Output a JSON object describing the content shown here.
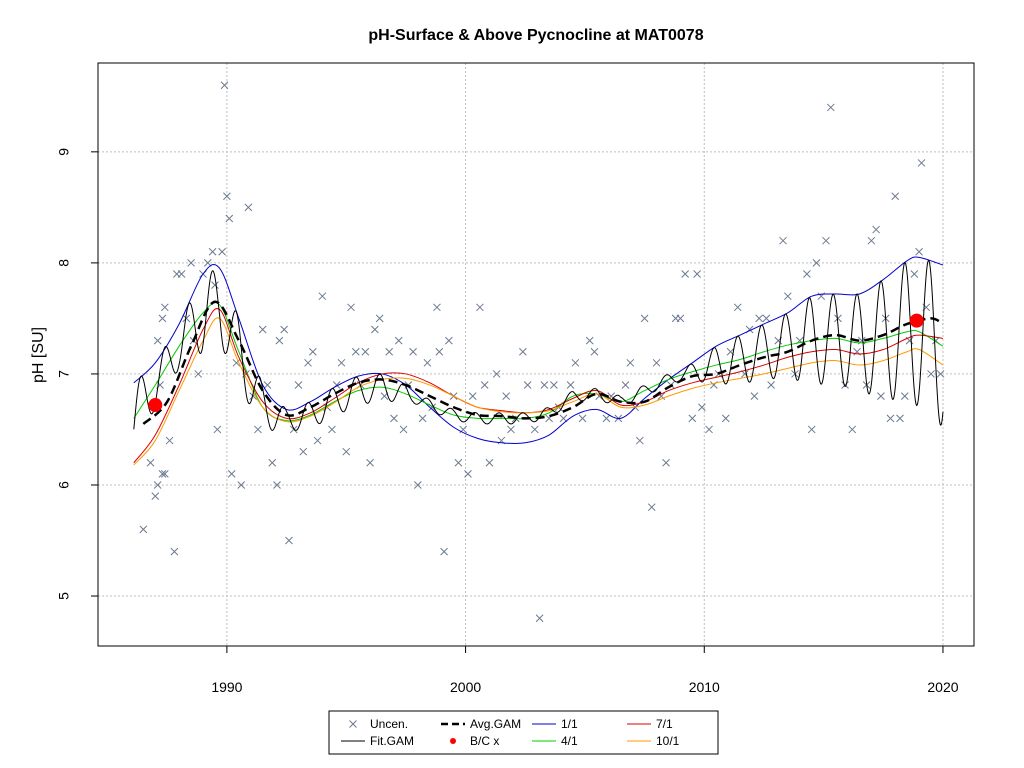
{
  "chart_data": {
    "type": "scatter",
    "title": "pH-Surface & Above Pycnocline at MAT0078",
    "xlabel": "",
    "ylabel": "pH [SU]",
    "xlim": [
      1984.6,
      2021.3
    ],
    "ylim": [
      4.55,
      9.8
    ],
    "xticks": [
      1990,
      2000,
      2010,
      2020
    ],
    "yticks": [
      5,
      6,
      7,
      8,
      9
    ],
    "grid": true,
    "colors": {
      "points": "#6b7a8f",
      "fit_gam": "#000000",
      "avg_gam": "#000000",
      "bc": "#ff0000",
      "s1_1": "#0000cc",
      "s4_1": "#00cc00",
      "s7_1": "#dd0000",
      "s10_1": "#ff9900",
      "grid": "#bfbfbf"
    },
    "legend": {
      "position": "bottom-center",
      "entries": [
        {
          "label": "Uncen.",
          "symbol": "x-mark",
          "color": "#6b7a8f"
        },
        {
          "label": "Avg.GAM",
          "symbol": "dashed-line",
          "color": "#000000"
        },
        {
          "label": "1/1",
          "symbol": "line",
          "color": "#0000cc"
        },
        {
          "label": "7/1",
          "symbol": "line",
          "color": "#dd0000"
        },
        {
          "label": "Fit.GAM",
          "symbol": "line",
          "color": "#000000"
        },
        {
          "label": "B/C x",
          "symbol": "dot",
          "color": "#ff0000"
        },
        {
          "label": "4/1",
          "symbol": "line",
          "color": "#00cc00"
        },
        {
          "label": "10/1",
          "symbol": "line",
          "color": "#ff9900"
        }
      ]
    },
    "baseline_change_points": [
      {
        "x": 1987.0,
        "y": 6.72
      },
      {
        "x": 2018.9,
        "y": 7.48
      }
    ],
    "avg_gam": {
      "x": [
        1986.5,
        1987.5,
        1988.5,
        1989.5,
        1990.5,
        1991.5,
        1992.5,
        1993.5,
        1994.5,
        1995.5,
        1996.5,
        1997.5,
        1998.5,
        1999.5,
        2000.5,
        2001.5,
        2002.5,
        2003.5,
        2004.5,
        2005.5,
        2006.5,
        2007.5,
        2008.5,
        2009.5,
        2010.5,
        2011.5,
        2012.5,
        2013.5,
        2014.5,
        2015.5,
        2016.5,
        2017.5,
        2018.5,
        2019.5,
        2020.0
      ],
      "y": [
        6.55,
        6.75,
        7.25,
        7.65,
        7.3,
        6.85,
        6.63,
        6.7,
        6.82,
        6.92,
        6.95,
        6.9,
        6.8,
        6.7,
        6.63,
        6.62,
        6.6,
        6.62,
        6.7,
        6.82,
        6.75,
        6.75,
        6.88,
        6.98,
        7.0,
        7.08,
        7.15,
        7.2,
        7.3,
        7.35,
        7.3,
        7.35,
        7.45,
        7.5,
        7.45
      ]
    },
    "series": [
      {
        "name": "1/1",
        "x": [
          1986.1,
          1987.0,
          1988.0,
          1989.0,
          1989.7,
          1990.5,
          1991.5,
          1992.5,
          1993.5,
          1994.5,
          1995.5,
          1996.5,
          1997.5,
          1998.5,
          1999.5,
          2000.5,
          2001.5,
          2002.5,
          2003.5,
          2004.5,
          2005.5,
          2006.5,
          2007.5,
          2008.5,
          2009.5,
          2010.5,
          2011.5,
          2012.5,
          2013.5,
          2014.5,
          2015.5,
          2016.5,
          2017.5,
          2018.5,
          2019.0,
          2020.0
        ],
        "y": [
          6.92,
          7.1,
          7.45,
          7.9,
          7.95,
          7.5,
          6.9,
          6.68,
          6.75,
          6.88,
          6.98,
          7.0,
          6.9,
          6.7,
          6.52,
          6.42,
          6.38,
          6.38,
          6.45,
          6.62,
          6.68,
          6.6,
          6.78,
          6.95,
          7.1,
          7.25,
          7.35,
          7.45,
          7.55,
          7.7,
          7.72,
          7.72,
          7.85,
          8.02,
          8.05,
          7.98
        ]
      },
      {
        "name": "4/1",
        "x": [
          1986.1,
          1987.0,
          1988.0,
          1989.0,
          1989.7,
          1990.5,
          1991.5,
          1992.5,
          1993.5,
          1994.5,
          1995.5,
          1996.5,
          1997.5,
          1998.5,
          1999.5,
          2000.5,
          2001.5,
          2002.5,
          2003.5,
          2004.5,
          2005.5,
          2006.5,
          2007.5,
          2008.5,
          2009.5,
          2010.5,
          2011.5,
          2012.5,
          2013.5,
          2014.5,
          2015.5,
          2016.5,
          2017.5,
          2018.5,
          2019.0,
          2020.0
        ],
        "y": [
          6.6,
          6.9,
          7.25,
          7.55,
          7.62,
          7.2,
          6.7,
          6.58,
          6.63,
          6.75,
          6.85,
          6.88,
          6.82,
          6.72,
          6.63,
          6.6,
          6.6,
          6.6,
          6.65,
          6.8,
          6.82,
          6.75,
          6.85,
          6.95,
          7.02,
          7.08,
          7.13,
          7.2,
          7.26,
          7.3,
          7.32,
          7.28,
          7.32,
          7.38,
          7.38,
          7.25
        ]
      },
      {
        "name": "7/1",
        "x": [
          1986.1,
          1987.0,
          1988.0,
          1989.0,
          1989.7,
          1990.5,
          1991.5,
          1992.5,
          1993.5,
          1994.5,
          1995.5,
          1996.5,
          1997.5,
          1998.5,
          1999.5,
          2000.5,
          2001.5,
          2002.5,
          2003.5,
          2004.5,
          2005.5,
          2006.5,
          2007.5,
          2008.5,
          2009.5,
          2010.5,
          2011.5,
          2012.5,
          2013.5,
          2014.5,
          2015.5,
          2016.5,
          2017.5,
          2018.5,
          2019.0,
          2020.0
        ],
        "y": [
          6.2,
          6.45,
          6.9,
          7.4,
          7.58,
          7.15,
          6.75,
          6.6,
          6.65,
          6.78,
          6.92,
          7.0,
          7.0,
          6.92,
          6.8,
          6.7,
          6.67,
          6.65,
          6.68,
          6.78,
          6.85,
          6.72,
          6.75,
          6.85,
          6.92,
          6.97,
          7.02,
          7.08,
          7.15,
          7.2,
          7.22,
          7.18,
          7.22,
          7.32,
          7.35,
          7.32
        ]
      },
      {
        "name": "10/1",
        "x": [
          1986.1,
          1987.0,
          1988.0,
          1989.0,
          1989.7,
          1990.5,
          1991.5,
          1992.5,
          1993.5,
          1994.5,
          1995.5,
          1996.5,
          1997.5,
          1998.5,
          1999.5,
          2000.5,
          2001.5,
          2002.5,
          2003.5,
          2004.5,
          2005.5,
          2006.5,
          2007.5,
          2008.5,
          2009.5,
          2010.5,
          2011.5,
          2012.5,
          2013.5,
          2014.5,
          2015.5,
          2016.5,
          2017.5,
          2018.5,
          2019.0,
          2020.0
        ],
        "y": [
          6.18,
          6.4,
          6.85,
          7.3,
          7.5,
          7.1,
          6.7,
          6.57,
          6.62,
          6.74,
          6.88,
          6.95,
          6.96,
          6.9,
          6.8,
          6.7,
          6.66,
          6.65,
          6.67,
          6.75,
          6.82,
          6.7,
          6.72,
          6.8,
          6.87,
          6.92,
          6.96,
          7.0,
          7.05,
          7.1,
          7.12,
          7.08,
          7.12,
          7.2,
          7.22,
          7.08
        ]
      }
    ],
    "points": [
      [
        1986.5,
        5.6
      ],
      [
        1986.8,
        6.2
      ],
      [
        1987.0,
        5.9
      ],
      [
        1987.1,
        6.0
      ],
      [
        1987.3,
        6.1
      ],
      [
        1987.4,
        6.1
      ],
      [
        1987.2,
        6.9
      ],
      [
        1987.1,
        7.3
      ],
      [
        1987.3,
        7.5
      ],
      [
        1987.4,
        7.6
      ],
      [
        1987.6,
        6.4
      ],
      [
        1987.8,
        5.4
      ],
      [
        1987.9,
        7.9
      ],
      [
        1988.1,
        7.9
      ],
      [
        1988.3,
        7.5
      ],
      [
        1988.5,
        8.0
      ],
      [
        1988.6,
        7.3
      ],
      [
        1988.8,
        7.0
      ],
      [
        1989.0,
        7.9
      ],
      [
        1989.2,
        8.0
      ],
      [
        1989.4,
        8.1
      ],
      [
        1989.5,
        7.8
      ],
      [
        1989.6,
        6.5
      ],
      [
        1989.8,
        8.1
      ],
      [
        1989.9,
        9.6
      ],
      [
        1990.0,
        8.6
      ],
      [
        1990.1,
        8.4
      ],
      [
        1990.2,
        6.1
      ],
      [
        1990.4,
        7.1
      ],
      [
        1990.6,
        6.0
      ],
      [
        1990.8,
        7.0
      ],
      [
        1990.9,
        8.5
      ],
      [
        1991.1,
        6.8
      ],
      [
        1991.3,
        6.5
      ],
      [
        1991.5,
        7.4
      ],
      [
        1991.7,
        6.9
      ],
      [
        1991.9,
        6.2
      ],
      [
        1992.1,
        6.0
      ],
      [
        1992.2,
        7.3
      ],
      [
        1992.4,
        7.4
      ],
      [
        1992.6,
        5.5
      ],
      [
        1992.8,
        6.5
      ],
      [
        1993.0,
        6.9
      ],
      [
        1993.2,
        6.3
      ],
      [
        1993.4,
        7.1
      ],
      [
        1993.6,
        7.2
      ],
      [
        1993.8,
        6.4
      ],
      [
        1994.0,
        7.7
      ],
      [
        1994.2,
        6.7
      ],
      [
        1994.4,
        6.5
      ],
      [
        1994.6,
        6.9
      ],
      [
        1994.8,
        7.1
      ],
      [
        1995.0,
        6.3
      ],
      [
        1995.2,
        7.6
      ],
      [
        1995.4,
        7.2
      ],
      [
        1995.6,
        6.9
      ],
      [
        1995.8,
        7.2
      ],
      [
        1996.0,
        6.2
      ],
      [
        1996.2,
        7.4
      ],
      [
        1996.4,
        7.5
      ],
      [
        1996.6,
        6.8
      ],
      [
        1996.8,
        7.2
      ],
      [
        1997.0,
        6.6
      ],
      [
        1997.2,
        7.3
      ],
      [
        1997.4,
        6.5
      ],
      [
        1997.6,
        6.9
      ],
      [
        1997.8,
        7.2
      ],
      [
        1998.0,
        6.0
      ],
      [
        1998.2,
        6.6
      ],
      [
        1998.4,
        7.1
      ],
      [
        1998.6,
        6.7
      ],
      [
        1998.8,
        7.6
      ],
      [
        1998.9,
        7.2
      ],
      [
        1999.1,
        5.4
      ],
      [
        1999.3,
        7.3
      ],
      [
        1999.5,
        6.8
      ],
      [
        1999.7,
        6.2
      ],
      [
        1999.9,
        6.5
      ],
      [
        2000.1,
        6.1
      ],
      [
        2000.3,
        6.8
      ],
      [
        2000.6,
        7.6
      ],
      [
        2000.8,
        6.9
      ],
      [
        2001.0,
        6.2
      ],
      [
        2001.3,
        7.0
      ],
      [
        2001.5,
        6.4
      ],
      [
        2001.7,
        6.8
      ],
      [
        2001.9,
        6.5
      ],
      [
        2002.1,
        6.6
      ],
      [
        2002.4,
        7.2
      ],
      [
        2002.6,
        6.9
      ],
      [
        2002.9,
        6.5
      ],
      [
        2003.1,
        4.8
      ],
      [
        2003.3,
        6.9
      ],
      [
        2003.5,
        6.6
      ],
      [
        2003.7,
        6.9
      ],
      [
        2003.9,
        6.7
      ],
      [
        2004.1,
        6.6
      ],
      [
        2004.4,
        6.9
      ],
      [
        2004.6,
        7.1
      ],
      [
        2004.9,
        6.6
      ],
      [
        2005.2,
        7.3
      ],
      [
        2005.4,
        7.2
      ],
      [
        2005.6,
        6.8
      ],
      [
        2005.9,
        6.6
      ],
      [
        2006.1,
        6.8
      ],
      [
        2006.4,
        6.6
      ],
      [
        2006.7,
        6.9
      ],
      [
        2006.9,
        7.1
      ],
      [
        2007.1,
        6.7
      ],
      [
        2007.3,
        6.4
      ],
      [
        2007.5,
        7.5
      ],
      [
        2007.8,
        5.8
      ],
      [
        2008.0,
        7.1
      ],
      [
        2008.2,
        6.8
      ],
      [
        2008.4,
        6.2
      ],
      [
        2008.6,
        6.9
      ],
      [
        2008.8,
        7.5
      ],
      [
        2009.0,
        7.5
      ],
      [
        2009.2,
        7.9
      ],
      [
        2009.5,
        6.6
      ],
      [
        2009.7,
        7.9
      ],
      [
        2009.9,
        6.7
      ],
      [
        2010.2,
        6.5
      ],
      [
        2010.4,
        6.9
      ],
      [
        2010.6,
        7.0
      ],
      [
        2010.9,
        6.6
      ],
      [
        2011.1,
        7.2
      ],
      [
        2011.4,
        7.6
      ],
      [
        2011.7,
        7.0
      ],
      [
        2011.9,
        7.4
      ],
      [
        2012.1,
        6.8
      ],
      [
        2012.3,
        7.5
      ],
      [
        2012.6,
        7.5
      ],
      [
        2012.8,
        6.9
      ],
      [
        2013.1,
        7.3
      ],
      [
        2013.3,
        8.2
      ],
      [
        2013.5,
        7.7
      ],
      [
        2013.8,
        7.0
      ],
      [
        2014.0,
        7.3
      ],
      [
        2014.3,
        7.9
      ],
      [
        2014.5,
        6.5
      ],
      [
        2014.7,
        8.0
      ],
      [
        2014.9,
        7.7
      ],
      [
        2015.1,
        8.2
      ],
      [
        2015.3,
        9.4
      ],
      [
        2015.6,
        7.5
      ],
      [
        2015.9,
        6.9
      ],
      [
        2016.2,
        6.5
      ],
      [
        2016.4,
        7.2
      ],
      [
        2016.6,
        7.3
      ],
      [
        2016.8,
        6.9
      ],
      [
        2017.0,
        8.2
      ],
      [
        2017.2,
        8.3
      ],
      [
        2017.4,
        6.8
      ],
      [
        2017.6,
        7.5
      ],
      [
        2017.8,
        6.6
      ],
      [
        2018.0,
        8.6
      ],
      [
        2018.2,
        6.6
      ],
      [
        2018.4,
        6.8
      ],
      [
        2018.6,
        7.3
      ],
      [
        2018.8,
        7.9
      ],
      [
        2019.0,
        8.1
      ],
      [
        2019.1,
        8.9
      ],
      [
        2019.3,
        7.6
      ],
      [
        2019.5,
        7.0
      ],
      [
        2019.7,
        7.3
      ],
      [
        2019.9,
        7.0
      ]
    ]
  }
}
